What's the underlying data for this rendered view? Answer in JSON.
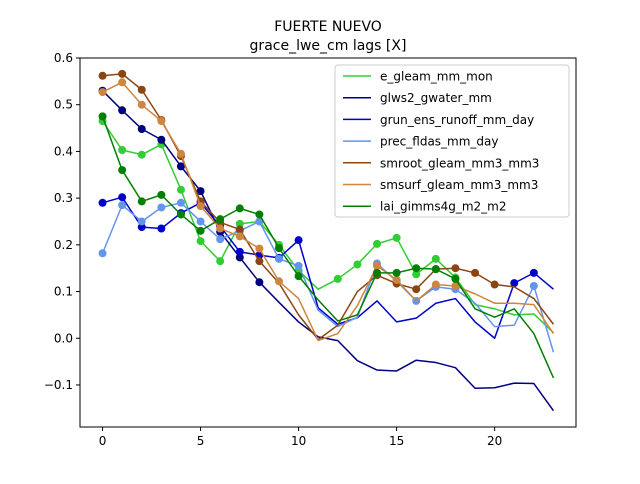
{
  "chart_data": {
    "type": "line",
    "title": "FUERTE NUEVO",
    "subtitle": "grace_lwe_cm lags [X]",
    "xlabel": "",
    "ylabel": "",
    "xlim": [
      -1.15,
      24.15
    ],
    "ylim": [
      -0.19,
      0.6
    ],
    "xticks": [
      0,
      5,
      10,
      15,
      20
    ],
    "yticks": [
      -0.1,
      0.0,
      0.1,
      0.2,
      0.3,
      0.4,
      0.5,
      0.6
    ],
    "xtick_labels": [
      "0",
      "5",
      "10",
      "15",
      "20"
    ],
    "ytick_labels": [
      "−0.1",
      "0.0",
      "0.1",
      "0.2",
      "0.3",
      "0.4",
      "0.5",
      "0.6"
    ],
    "grid": false,
    "legend_position": "upper-right",
    "x": [
      0,
      1,
      2,
      3,
      4,
      5,
      6,
      7,
      8,
      9,
      10,
      11,
      12,
      13,
      14,
      15,
      16,
      17,
      18,
      19,
      20,
      21,
      22,
      23
    ],
    "series": [
      {
        "name": "e_gleam_mm_mon",
        "color": "#32cd32",
        "values": [
          0.465,
          0.403,
          0.393,
          0.415,
          0.318,
          0.208,
          0.165,
          0.245,
          0.25,
          0.2,
          0.145,
          0.105,
          0.127,
          0.158,
          0.202,
          0.215,
          0.137,
          0.17,
          0.13,
          0.072,
          0.063,
          0.05,
          0.052,
          0.012
        ],
        "markers": [
          0,
          1,
          2,
          3,
          4,
          5,
          6,
          7,
          8,
          9,
          10,
          12,
          13,
          14,
          15,
          16,
          17,
          18
        ]
      },
      {
        "name": "glws2_gwater_mm",
        "color": "#000080",
        "values": [
          0.53,
          0.488,
          0.448,
          0.425,
          0.368,
          0.315,
          0.228,
          0.173,
          0.12,
          0.077,
          0.035,
          0.003,
          -0.005,
          -0.048,
          -0.068,
          -0.07,
          -0.047,
          -0.052,
          -0.063,
          -0.107,
          -0.106,
          -0.096,
          -0.097,
          -0.155
        ],
        "markers": [
          0,
          1,
          2,
          3,
          4,
          5,
          6,
          7,
          8
        ]
      },
      {
        "name": "grun_ens_runoff_mm_day",
        "color": "#0000cd",
        "values": [
          0.29,
          0.302,
          0.238,
          0.235,
          0.268,
          0.29,
          0.24,
          0.185,
          0.178,
          0.172,
          0.21,
          0.065,
          0.03,
          0.044,
          0.08,
          0.035,
          0.043,
          0.075,
          0.085,
          0.035,
          0.0,
          0.118,
          0.14,
          0.105
        ],
        "markers": [
          0,
          1,
          2,
          3,
          4,
          5,
          6,
          7,
          8,
          9,
          10,
          21,
          22
        ]
      },
      {
        "name": "prec_fldas_mm_day",
        "color": "#6495ed",
        "values": [
          0.182,
          0.285,
          0.25,
          0.28,
          0.29,
          0.25,
          0.212,
          0.23,
          0.25,
          0.17,
          0.155,
          0.06,
          0.025,
          0.045,
          0.16,
          0.122,
          0.08,
          0.11,
          0.105,
          0.075,
          0.025,
          0.028,
          0.112,
          -0.03
        ],
        "markers": [
          0,
          1,
          2,
          3,
          4,
          5,
          6,
          7,
          8,
          9,
          10,
          14,
          15,
          16,
          17,
          18,
          22
        ]
      },
      {
        "name": "smroot_gleam_mm3_mm3",
        "color": "#8b4513",
        "values": [
          0.562,
          0.566,
          0.532,
          0.467,
          0.39,
          0.293,
          0.248,
          0.233,
          0.165,
          0.118,
          0.05,
          -0.003,
          0.028,
          0.1,
          0.135,
          0.117,
          0.105,
          0.148,
          0.15,
          0.14,
          0.115,
          0.11,
          0.085,
          0.03
        ],
        "markers": [
          0,
          1,
          2,
          3,
          4,
          5,
          6,
          7,
          8,
          14,
          15,
          16,
          17,
          18,
          19,
          20
        ]
      },
      {
        "name": "smsurf_gleam_mm3_mm3",
        "color": "#cd853f",
        "values": [
          0.527,
          0.548,
          0.5,
          0.465,
          0.395,
          0.283,
          0.235,
          0.218,
          0.192,
          0.122,
          0.085,
          -0.005,
          0.01,
          0.07,
          0.155,
          0.125,
          0.08,
          0.115,
          0.112,
          0.095,
          0.075,
          0.075,
          0.072,
          0.01
        ],
        "markers": [
          0,
          1,
          2,
          3,
          4,
          5,
          6,
          7,
          8,
          9,
          14,
          15,
          17,
          18
        ]
      },
      {
        "name": "lai_gimms4g_m2_m2",
        "color": "#008000",
        "values": [
          0.475,
          0.36,
          0.293,
          0.307,
          0.265,
          0.23,
          0.255,
          0.278,
          0.265,
          0.193,
          0.133,
          0.082,
          0.037,
          0.05,
          0.14,
          0.14,
          0.15,
          0.148,
          0.127,
          0.063,
          0.045,
          0.063,
          0.01,
          -0.085
        ],
        "markers": [
          0,
          1,
          2,
          3,
          4,
          5,
          6,
          7,
          8,
          9,
          10,
          14,
          15,
          16,
          17,
          18
        ]
      }
    ]
  }
}
